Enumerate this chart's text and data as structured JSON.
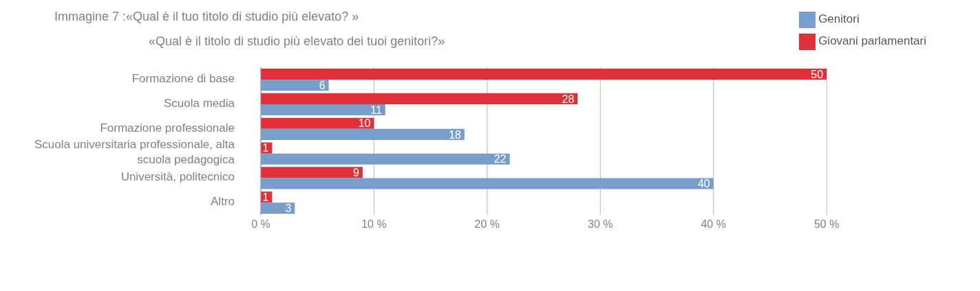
{
  "chart_data": {
    "type": "bar",
    "orientation": "horizontal",
    "title": "Immagine 7 :«Qual è il tuo titolo di studio più elevato? »",
    "subtitle": "«Qual è il titolo di studio più elevato dei tuoi genitori?»",
    "categories": [
      "Formazione di base",
      "Scuola media",
      "Formazione professionale",
      "Scuola universitaria professionale, alta scuola pedagogica",
      "Università, politecnico",
      "Altro"
    ],
    "series": [
      {
        "name": "Giovani parlamentari",
        "color": "#e0313a",
        "values": [
          50,
          28,
          10,
          1,
          9,
          1
        ]
      },
      {
        "name": "Genitori",
        "color": "#779dcb",
        "values": [
          6,
          11,
          18,
          22,
          40,
          3
        ]
      }
    ],
    "xlim": [
      0,
      50
    ],
    "xticks": [
      {
        "value": 0,
        "label": "0 %"
      },
      {
        "value": 10,
        "label": "10 %"
      },
      {
        "value": 20,
        "label": "20 %"
      },
      {
        "value": 30,
        "label": "30 %"
      },
      {
        "value": 40,
        "label": "40 %"
      },
      {
        "value": 50,
        "label": "50 %"
      }
    ],
    "grid": "x",
    "legend": "top right",
    "data_labels": true
  }
}
